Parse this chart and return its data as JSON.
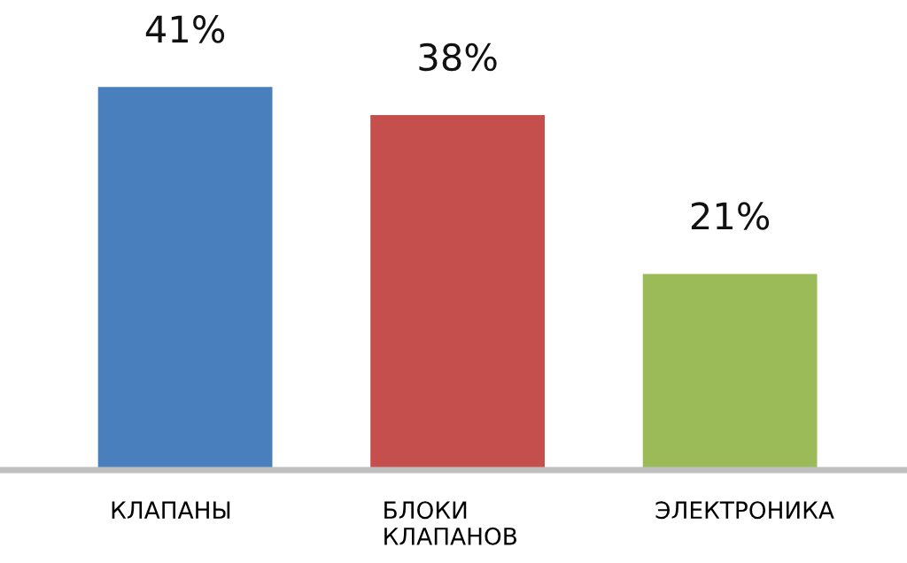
{
  "chart_data": {
    "type": "bar",
    "categories": [
      "КЛАПАНЫ",
      "БЛОКИ\nКЛАПАНОВ",
      "ЭЛЕКТРОНИКА"
    ],
    "values": [
      41,
      38,
      21
    ],
    "colors": [
      "#4a7fbd",
      "#c44f4c",
      "#9bbb59"
    ],
    "value_labels": [
      "41%",
      "38%",
      "21%"
    ],
    "grid": false,
    "legend": false
  }
}
